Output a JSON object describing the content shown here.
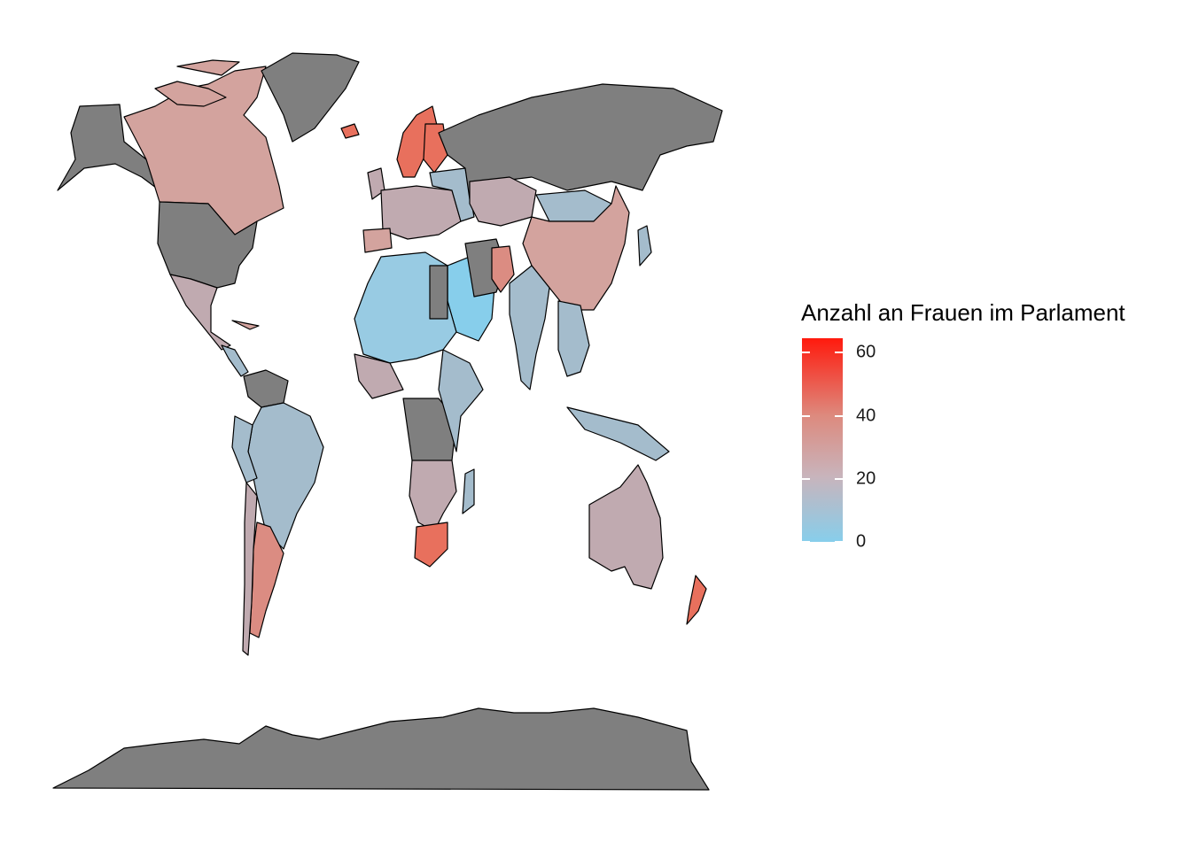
{
  "legend": {
    "title": "Anzahl an Frauen im Parlament",
    "ticks": [
      "60",
      "40",
      "20",
      "0"
    ],
    "scale_min": 0,
    "scale_max": 64,
    "colors": {
      "low": "#87ceeb",
      "mid": "#c8b4bc",
      "high": "#ff1a0d",
      "na": "#7f7f7f"
    }
  }
}
